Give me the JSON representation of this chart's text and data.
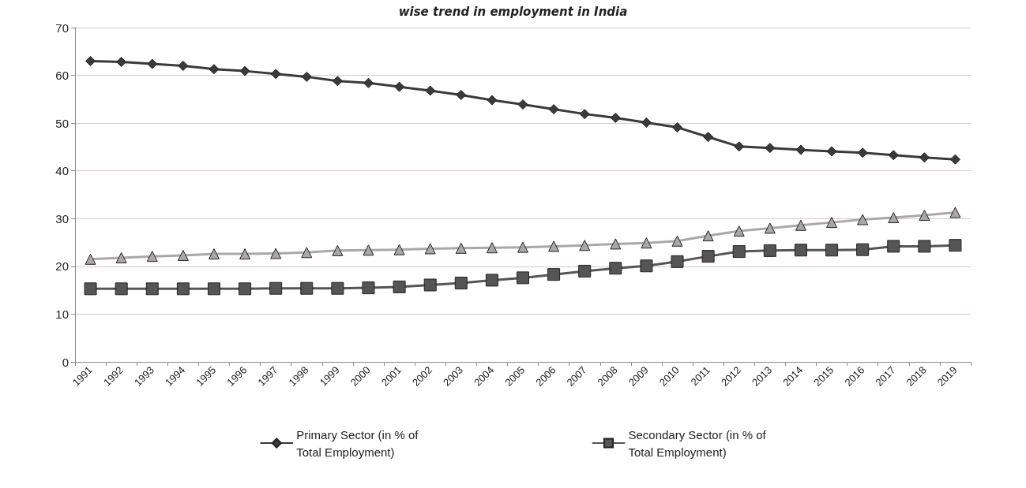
{
  "chart_data": {
    "type": "line",
    "title": "wise trend in employment in India",
    "categories": [
      "1991",
      "1992",
      "1993",
      "1994",
      "1995",
      "1996",
      "1997",
      "1998",
      "1999",
      "2000",
      "2001",
      "2002",
      "2003",
      "2004",
      "2005",
      "2006",
      "2007",
      "2008",
      "2009",
      "2010",
      "2011",
      "2012",
      "2013",
      "2014",
      "2015",
      "2016",
      "2017",
      "2018",
      "2019"
    ],
    "series": [
      {
        "name": "Primary Sector (in % of Total Employment)",
        "color": "#3a3a3a",
        "marker": "diamond",
        "values": [
          63,
          62.8,
          62.4,
          62,
          61.3,
          60.9,
          60.3,
          59.7,
          58.8,
          58.4,
          57.6,
          56.8,
          55.9,
          54.8,
          53.9,
          52.9,
          51.9,
          51.1,
          50.1,
          49.1,
          47.1,
          45.1,
          44.8,
          44.4,
          44.1,
          43.8,
          43.3,
          42.8,
          42.4
        ]
      },
      {
        "name": "Secondary Sector (in % of Total Employment)",
        "color": "#555555",
        "marker": "square",
        "values": [
          15.3,
          15.3,
          15.3,
          15.3,
          15.3,
          15.3,
          15.4,
          15.4,
          15.4,
          15.5,
          15.7,
          16.1,
          16.5,
          17.1,
          17.6,
          18.3,
          19,
          19.6,
          20.1,
          21,
          22.1,
          23.1,
          23.3,
          23.4,
          23.4,
          23.5,
          24.2,
          24.2,
          24.4
        ]
      },
      {
        "color": "#a8a8a8",
        "marker": "triangle",
        "values": [
          21.5,
          21.8,
          22.1,
          22.3,
          22.6,
          22.6,
          22.7,
          22.9,
          23.3,
          23.4,
          23.5,
          23.7,
          23.8,
          23.9,
          24,
          24.2,
          24.4,
          24.7,
          24.9,
          25.3,
          26.4,
          27.4,
          28,
          28.6,
          29.2,
          29.8,
          30.2,
          30.7,
          31.3
        ]
      }
    ],
    "ylim": [
      0,
      70
    ],
    "yticks": [
      0,
      10,
      20,
      30,
      40,
      50,
      60,
      70
    ],
    "grid": "y",
    "legend": "bottom",
    "line_style": "solid"
  }
}
